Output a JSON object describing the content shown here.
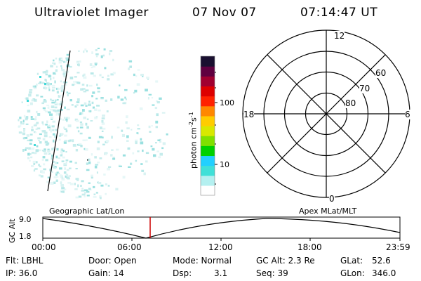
{
  "header": {
    "title": "Ultraviolet Imager",
    "date": "07 Nov 07",
    "time": "07:14:47 UT"
  },
  "colorbar": {
    "unit": "photon cm",
    "unit_exp1": "-2",
    "unit_mid": "s",
    "unit_exp2": "-1",
    "ticks": [
      "100",
      "10"
    ],
    "colors": [
      "#ffffff",
      "#b4f0f0",
      "#40e0d8",
      "#22d0ff",
      "#00d000",
      "#80e000",
      "#d8e800",
      "#ffcc00",
      "#ff8800",
      "#ff2200",
      "#dd0000",
      "#a00030",
      "#600040",
      "#1a1030"
    ]
  },
  "polar": {
    "mlt_labels": {
      "top": "12",
      "bottom": "0",
      "left": "18",
      "right": "6"
    },
    "lat_labels": [
      "60",
      "70",
      "80"
    ]
  },
  "timeline": {
    "axis_title": "GC Alt",
    "y_ticks": [
      "9.0",
      "1.8"
    ],
    "left_caption": "Geographic Lat/Lon",
    "right_caption": "Apex MLat/MLT",
    "x_ticks": [
      "00:00",
      "06:00",
      "12:00",
      "18:00",
      "23:59"
    ],
    "marker_color": "#cc0000"
  },
  "status": {
    "row1": [
      {
        "key": "Flt: LBHL"
      },
      {
        "key": "Door: Open"
      },
      {
        "key": "Mode: Normal"
      },
      {
        "key": "GC Alt: 2.3 Re"
      },
      {
        "key": "GLat:",
        "val": "52.6"
      }
    ],
    "row2": [
      {
        "key": "IP: 36.0"
      },
      {
        "key": "Gain: 14"
      },
      {
        "key": "Dsp:",
        "val": "3.1"
      },
      {
        "key": "Seq: 39"
      },
      {
        "key": "GLon:",
        "val": "346.0"
      }
    ]
  }
}
